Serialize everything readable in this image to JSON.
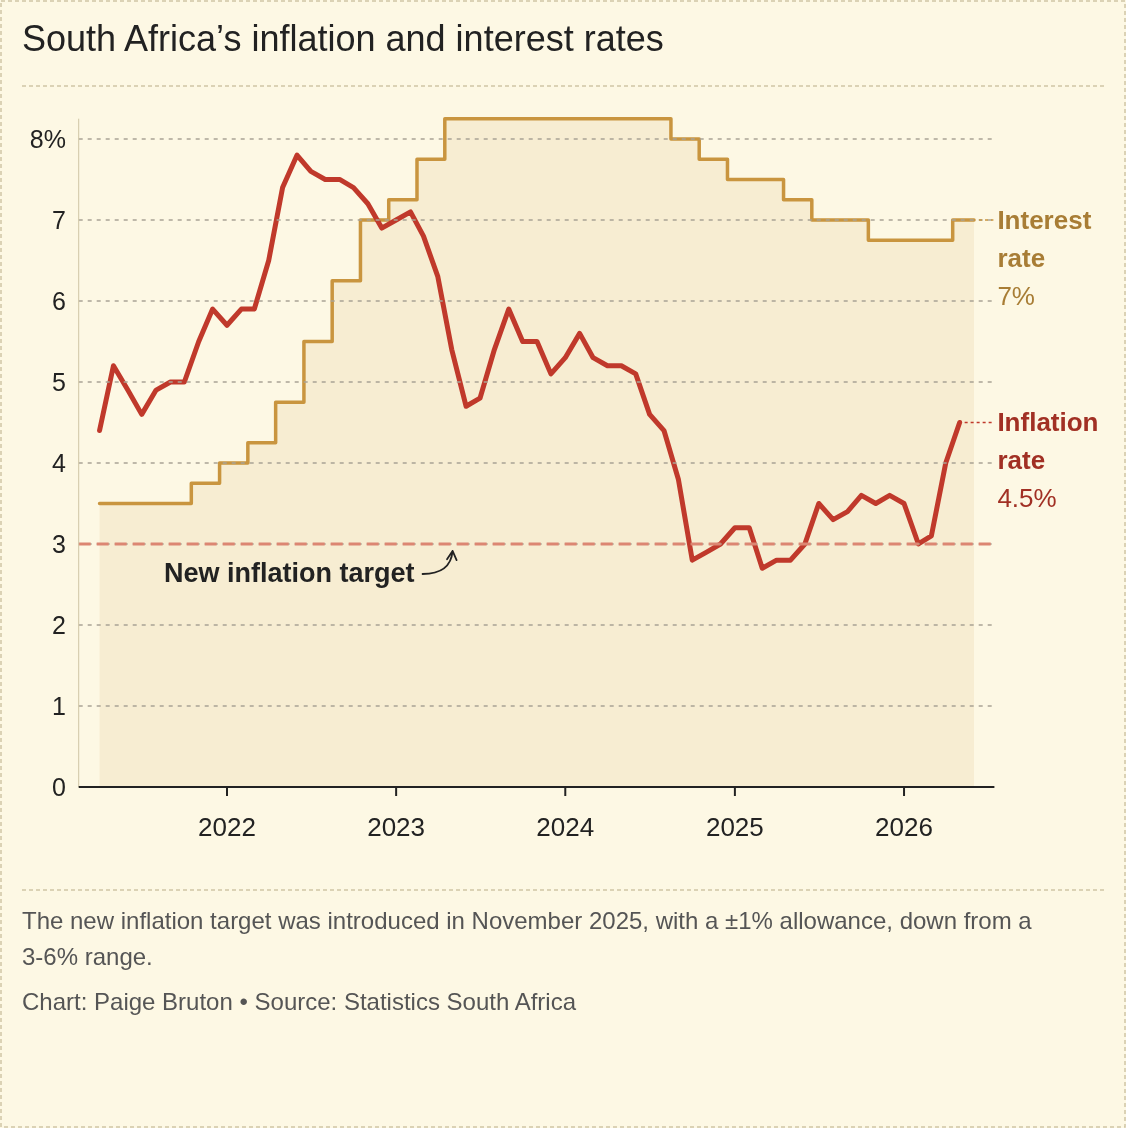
{
  "chart_data": {
    "type": "line",
    "title": "South Africa’s inflation and interest rates",
    "x": [
      "2021-04",
      "2021-05",
      "2021-06",
      "2021-07",
      "2021-08",
      "2021-09",
      "2021-10",
      "2021-11",
      "2021-12",
      "2022-01",
      "2022-02",
      "2022-03",
      "2022-04",
      "2022-05",
      "2022-06",
      "2022-07",
      "2022-08",
      "2022-09",
      "2022-10",
      "2022-11",
      "2022-12",
      "2023-01",
      "2023-02",
      "2023-03",
      "2023-04",
      "2023-05",
      "2023-06",
      "2023-07",
      "2023-08",
      "2023-09",
      "2023-10",
      "2023-11",
      "2023-12",
      "2024-01",
      "2024-02",
      "2024-03",
      "2024-04",
      "2024-05",
      "2024-06",
      "2024-07",
      "2024-08",
      "2024-09",
      "2024-10",
      "2024-11",
      "2024-12",
      "2025-01",
      "2025-02",
      "2025-03",
      "2025-04",
      "2025-05",
      "2025-06",
      "2025-07",
      "2025-08",
      "2025-09",
      "2025-10",
      "2025-11",
      "2025-12",
      "2026-01",
      "2026-02",
      "2026-03",
      "2026-04",
      "2026-05"
    ],
    "xlim": [
      "2021-02-15",
      "2026-07-15"
    ],
    "xticks": [
      "2022",
      "2023",
      "2024",
      "2025",
      "2026"
    ],
    "ylim": [
      0,
      8.25
    ],
    "yticks": [
      0,
      1,
      2,
      3,
      4,
      5,
      6,
      7,
      {
        "value": 8,
        "label": "8%"
      }
    ],
    "grid": "y",
    "legend": "right",
    "series": [
      {
        "name": "Interest rate",
        "type": "area",
        "color": "#c9953f",
        "x": [
          "2021-04",
          "2021-10-16",
          "2021-10-16",
          "2021-12-16",
          "2021-12-16",
          "2022-02-15",
          "2022-02-15",
          "2022-04-16",
          "2022-04-16",
          "2022-06-16",
          "2022-06-16",
          "2022-08-16",
          "2022-08-16",
          "2022-10-16",
          "2022-10-16",
          "2022-12-16",
          "2022-12-16",
          "2023-02-15",
          "2023-02-15",
          "2023-04-16",
          "2023-04-16",
          "2024-08-16",
          "2024-08-16",
          "2024-10-16",
          "2024-10-16",
          "2024-12-16",
          "2024-12-16",
          "2025-04-16",
          "2025-04-16",
          "2025-06-16",
          "2025-06-16",
          "2025-10-16",
          "2025-10-16",
          "2026-04-16",
          "2026-04-16",
          "2026-06"
        ],
        "values": [
          3.5,
          3.5,
          3.75,
          3.75,
          4,
          4,
          4.25,
          4.25,
          4.75,
          4.75,
          5.5,
          5.5,
          6.25,
          6.25,
          7,
          7,
          7.25,
          7.25,
          7.75,
          7.75,
          8.25,
          8.25,
          8,
          8,
          7.75,
          7.75,
          7.5,
          7.5,
          7.25,
          7.25,
          7,
          7,
          6.75,
          6.75,
          7,
          7
        ],
        "value_labels": [
          null,
          null,
          null,
          null,
          null,
          null,
          null,
          null,
          null,
          null,
          null,
          null,
          null,
          null,
          null,
          null,
          null,
          null,
          null,
          null,
          null,
          null,
          null,
          null,
          null,
          null,
          null,
          null,
          null,
          null,
          null,
          null,
          null,
          null,
          null,
          "7%"
        ]
      },
      {
        "name": "Inflation rate",
        "color": "#c0392b",
        "values": [
          4.4,
          5.2,
          4.9,
          4.6,
          4.9,
          5.0,
          5.0,
          5.5,
          5.9,
          5.7,
          5.9,
          5.9,
          6.5,
          7.4,
          7.8,
          7.6,
          7.5,
          7.5,
          7.4,
          7.2,
          6.9,
          7.0,
          7.1,
          6.8,
          6.3,
          5.4,
          4.7,
          4.8,
          5.4,
          5.9,
          5.5,
          5.5,
          5.1,
          5.3,
          5.6,
          5.3,
          5.2,
          5.2,
          5.1,
          4.6,
          4.4,
          3.8,
          2.8,
          2.9,
          3.0,
          3.2,
          3.2,
          2.7,
          2.8,
          2.8,
          3.0,
          3.5,
          3.3,
          3.4,
          3.6,
          3.5,
          3.6,
          3.5,
          3.0,
          3.1,
          4.0,
          4.5
        ],
        "value_labels": [
          null,
          null,
          null,
          null,
          null,
          null,
          null,
          null,
          null,
          null,
          null,
          null,
          null,
          null,
          null,
          null,
          null,
          null,
          null,
          null,
          null,
          null,
          null,
          null,
          null,
          null,
          null,
          null,
          null,
          null,
          null,
          null,
          null,
          null,
          null,
          null,
          null,
          null,
          null,
          null,
          null,
          null,
          null,
          null,
          null,
          null,
          null,
          null,
          null,
          null,
          null,
          null,
          null,
          null,
          null,
          null,
          null,
          null,
          null,
          null,
          null,
          "4.5%"
        ]
      }
    ],
    "ref_lines": [
      {
        "axis": "y",
        "value": 3,
        "label": "New inflation target",
        "color": "#dc8672",
        "line_style": "dashed"
      }
    ],
    "annotations": [
      "The new inflation target was introduced in November 2025, with a ±1% allowance, down from a 3-6% range.",
      "Chart: Paige Bruton • Source: Statistics South Africa"
    ]
  }
}
